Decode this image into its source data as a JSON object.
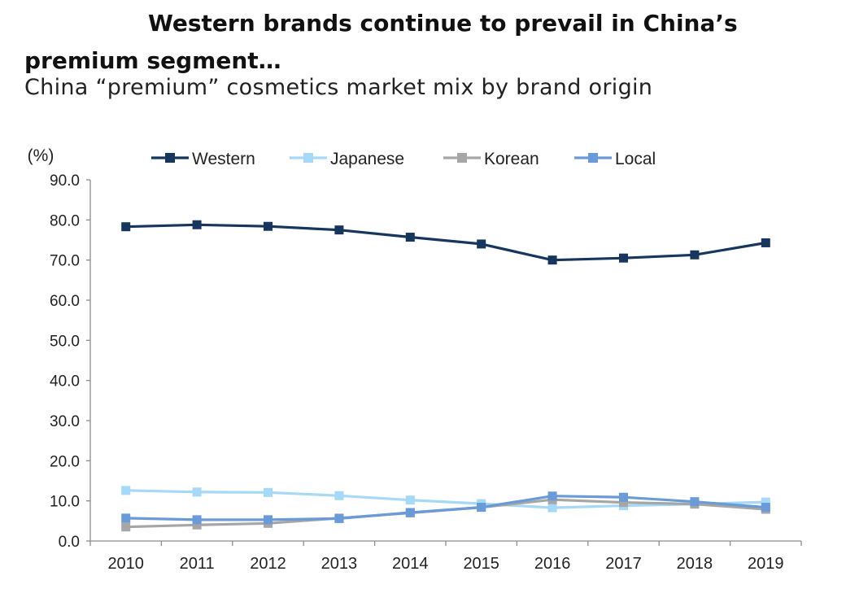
{
  "header": {
    "title": "Western brands continue to prevail in China’s premium segment…",
    "subtitle": "China “premium” cosmetics market mix by brand origin"
  },
  "chart_data": {
    "type": "line",
    "ylabel": "(%)",
    "xlabel": "",
    "ylim": [
      0,
      90
    ],
    "yticks": [
      "0.0",
      "10.0",
      "20.0",
      "30.0",
      "40.0",
      "50.0",
      "60.0",
      "70.0",
      "80.0",
      "90.0"
    ],
    "x": [
      "2010",
      "2011",
      "2012",
      "2013",
      "2014",
      "2015",
      "2016",
      "2017",
      "2018",
      "2019"
    ],
    "grid": false,
    "legend_position": "top",
    "series": [
      {
        "name": "Western",
        "color": "#17365d",
        "values": [
          78.3,
          78.8,
          78.4,
          77.5,
          75.7,
          74.0,
          70.0,
          70.5,
          71.3,
          74.3
        ]
      },
      {
        "name": "Japanese",
        "color": "#a6d8f7",
        "values": [
          12.6,
          12.2,
          12.1,
          11.3,
          10.2,
          9.3,
          8.3,
          8.8,
          9.2,
          9.7
        ]
      },
      {
        "name": "Korean",
        "color": "#a6a6a6",
        "values": [
          3.5,
          4.0,
          4.4,
          5.7,
          7.0,
          8.4,
          10.3,
          9.6,
          9.2,
          7.9
        ]
      },
      {
        "name": "Local",
        "color": "#6a9ad7",
        "values": [
          5.7,
          5.3,
          5.3,
          5.6,
          7.1,
          8.4,
          11.2,
          10.9,
          9.8,
          8.4
        ]
      }
    ]
  }
}
